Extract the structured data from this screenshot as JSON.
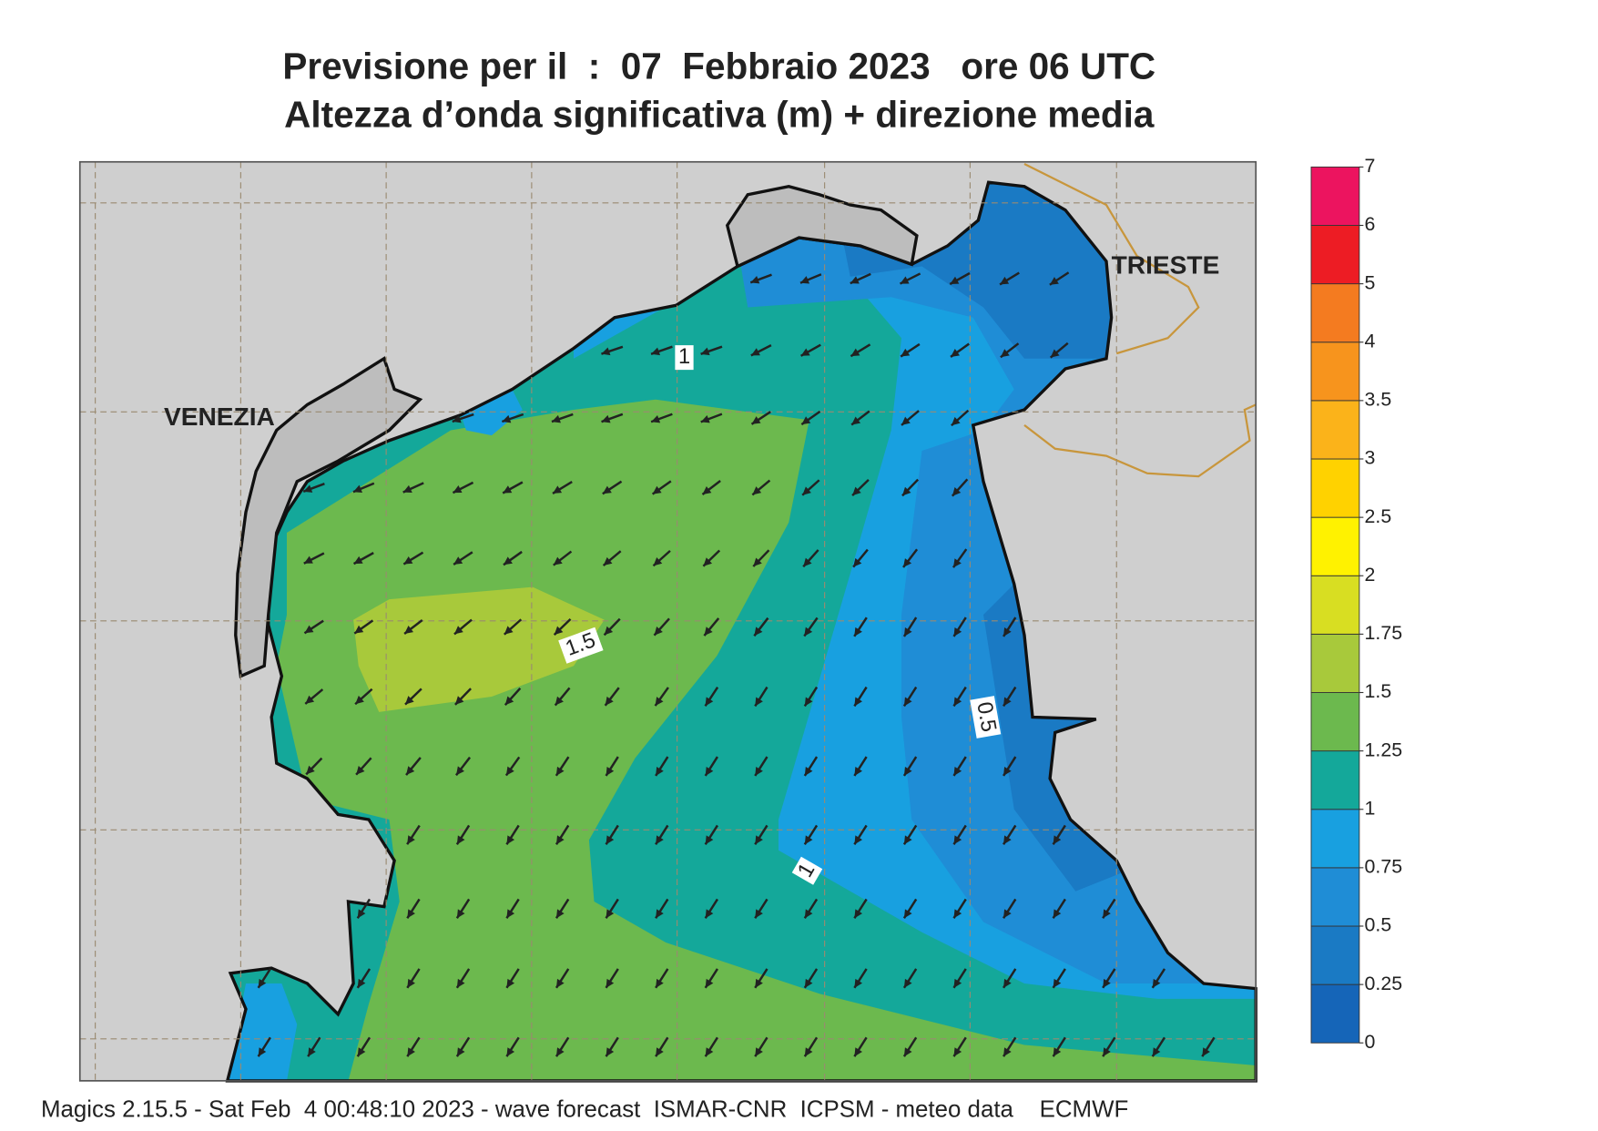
{
  "header": {
    "title_line1": "Previsione per il  :  07  Febbraio 2023   ore 06 UTC",
    "title_line2": "Altezza d’onda significativa (m) + direzione media"
  },
  "map": {
    "places": [
      "VENEZIA",
      "TRIESTE"
    ],
    "contour_labels": [
      1,
      1.5,
      0.5,
      1
    ]
  },
  "colorbar": {
    "levels": [
      0,
      0.25,
      0.5,
      0.75,
      1,
      1.25,
      1.5,
      1.75,
      2,
      2.5,
      3,
      3.5,
      4,
      5,
      6,
      7
    ],
    "colors": [
      "#1565b8",
      "#1a7ac4",
      "#1f8dd6",
      "#18a0e0",
      "#14a89a",
      "#6cb94e",
      "#a8c93b",
      "#d8de22",
      "#fff200",
      "#ffd200",
      "#fbb31a",
      "#f7941d",
      "#f47b20",
      "#ed1c24",
      "#ec145f"
    ]
  },
  "footer": "Magics 2.15.5 - Sat Feb  4 00:48:10 2023 - wave forecast  ISMAR-CNR  ICPSM - meteo data    ECMWF"
}
